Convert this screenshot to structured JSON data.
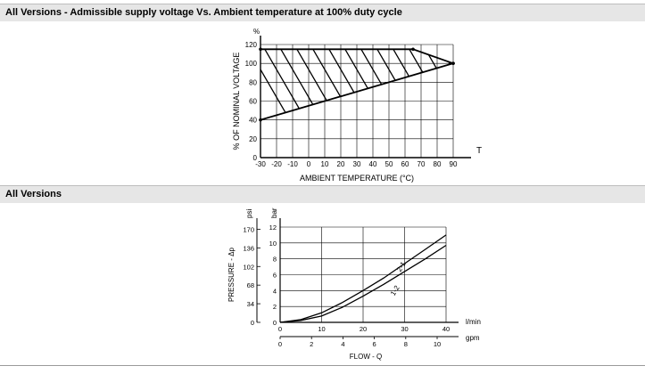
{
  "sections": [
    {
      "title": "All Versions - Admissible supply voltage Vs. Ambient temperature at 100% duty cycle"
    },
    {
      "title": "All Versions"
    }
  ],
  "chart_data": [
    {
      "type": "area",
      "title": "",
      "ylabel": "% OF NOMINAL VOLTAGE",
      "ylabel_unit": "%",
      "xlabel": "AMBIENT TEMPERATURE (°C)",
      "xlabel_short": "T",
      "xlim": [
        -30,
        90
      ],
      "ylim": [
        0,
        120
      ],
      "x_ticks": [
        -30,
        -20,
        -10,
        0,
        10,
        20,
        30,
        40,
        50,
        60,
        70,
        80,
        90
      ],
      "y_ticks": [
        0,
        20,
        40,
        60,
        80,
        100,
        120
      ],
      "grid": true,
      "series": [
        {
          "x": [
            -30,
            65,
            90
          ],
          "y": [
            115,
            115,
            100
          ]
        },
        {
          "x": [
            -30,
            90
          ],
          "y": [
            40,
            100
          ]
        }
      ],
      "region": "hatched area between the two boundary lines"
    },
    {
      "type": "line",
      "title": "",
      "ylabel": "PRESSURE - Δp",
      "ylabel_unit_left": "psi",
      "ylabel_unit_right": "bar",
      "xlabel": "FLOW - Q",
      "x_unit_top": "l/min",
      "x_unit_bottom": "gpm",
      "xlim": [
        0,
        40
      ],
      "ylim": [
        0,
        12
      ],
      "x_ticks_lpm": [
        0,
        10,
        20,
        30,
        40
      ],
      "x_ticks_gpm": [
        0,
        2,
        4,
        6,
        8,
        10
      ],
      "y_ticks_bar": [
        0,
        2,
        4,
        6,
        8,
        10,
        12
      ],
      "y_ticks_psi": [
        0,
        34,
        68,
        102,
        136,
        170
      ],
      "grid": true,
      "series": [
        {
          "name": "2-1",
          "x": [
            0,
            5,
            10,
            15,
            20,
            25,
            30,
            35,
            40
          ],
          "y": [
            0,
            0.35,
            1.2,
            2.5,
            4.0,
            5.6,
            7.4,
            9.2,
            11.0
          ]
        },
        {
          "name": "1-2",
          "x": [
            0,
            5,
            10,
            15,
            20,
            25,
            30,
            35,
            40
          ],
          "y": [
            0,
            0.25,
            0.8,
            1.9,
            3.3,
            4.8,
            6.4,
            8.0,
            9.7
          ]
        }
      ]
    }
  ]
}
